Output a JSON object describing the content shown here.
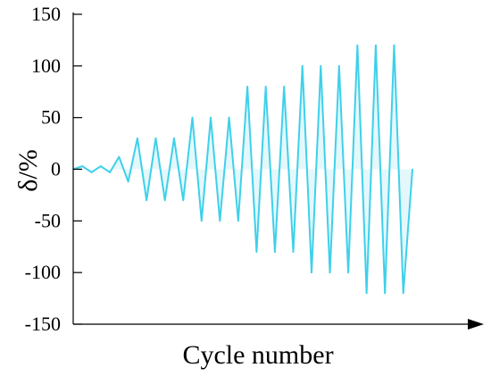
{
  "chart_data": {
    "type": "line",
    "title": "",
    "xlabel": "Cycle number",
    "ylabel": "δ/%",
    "ylim": [
      -150,
      150
    ],
    "yticks": [
      150,
      100,
      50,
      0,
      -50,
      -100,
      -150
    ],
    "grid": false,
    "legend": "none",
    "series": [
      {
        "color": "#3fd0ea",
        "points": [
          [
            0,
            0
          ],
          [
            1,
            3
          ],
          [
            2,
            -3
          ],
          [
            3,
            3
          ],
          [
            4,
            -3
          ],
          [
            5,
            12
          ],
          [
            6,
            -12
          ],
          [
            7,
            30
          ],
          [
            8,
            -30
          ],
          [
            9,
            30
          ],
          [
            10,
            -30
          ],
          [
            11,
            30
          ],
          [
            12,
            -30
          ],
          [
            13,
            50
          ],
          [
            14,
            -50
          ],
          [
            15,
            50
          ],
          [
            16,
            -50
          ],
          [
            17,
            50
          ],
          [
            18,
            -50
          ],
          [
            19,
            80
          ],
          [
            20,
            -80
          ],
          [
            21,
            80
          ],
          [
            22,
            -80
          ],
          [
            23,
            80
          ],
          [
            24,
            -80
          ],
          [
            25,
            100
          ],
          [
            26,
            -100
          ],
          [
            27,
            100
          ],
          [
            28,
            -100
          ],
          [
            29,
            100
          ],
          [
            30,
            -100
          ],
          [
            31,
            120
          ],
          [
            32,
            -120
          ],
          [
            33,
            120
          ],
          [
            34,
            -120
          ],
          [
            35,
            120
          ],
          [
            36,
            -120
          ],
          [
            37,
            0
          ]
        ]
      }
    ]
  }
}
